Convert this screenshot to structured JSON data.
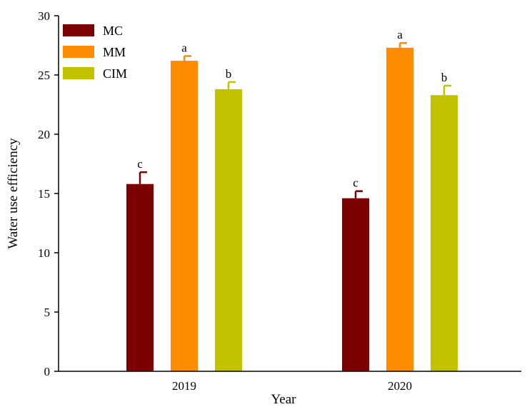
{
  "chart_data": {
    "type": "bar",
    "categories": [
      "2019",
      "2020"
    ],
    "xlabel": "Year",
    "ylabel": "Water use efficiency",
    "ylim": [
      0,
      30
    ],
    "yticks": [
      0,
      5,
      10,
      15,
      20,
      25,
      30
    ],
    "legend": "top-left",
    "grid": false,
    "series": [
      {
        "name": "MC",
        "color": "#7b0000",
        "values": [
          15.8,
          14.6
        ],
        "errors": [
          1.0,
          0.6
        ],
        "labels": [
          "c",
          "c"
        ]
      },
      {
        "name": "MM",
        "color": "#ff8c00",
        "values": [
          26.2,
          27.3
        ],
        "errors": [
          0.4,
          0.4
        ],
        "labels": [
          "a",
          "a"
        ]
      },
      {
        "name": "CIM",
        "color": "#c2c200",
        "values": [
          23.8,
          23.3
        ],
        "errors": [
          0.6,
          0.8
        ],
        "labels": [
          "b",
          "b"
        ]
      }
    ]
  }
}
